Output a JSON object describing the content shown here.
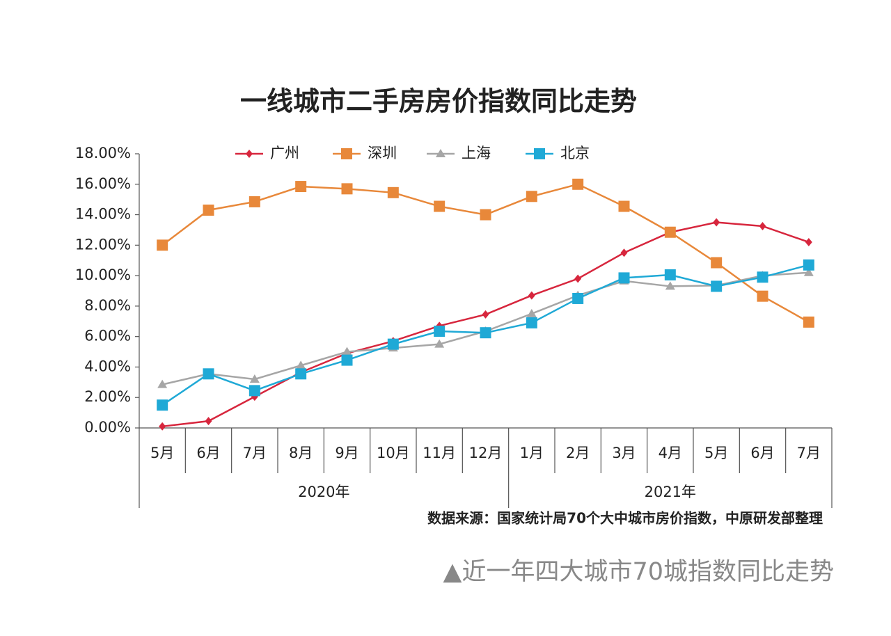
{
  "chart_data": {
    "type": "line",
    "title": "一线城市二手房房价指数同比走势",
    "source": "数据来源：国家统计局70个大中城市房价指数，中原研发部整理",
    "caption": "▲近一年四大城市70城指数同比走势",
    "category_groups": [
      {
        "name": "2020年",
        "categories": [
          "5月",
          "6月",
          "7月",
          "8月",
          "9月",
          "10月",
          "11月",
          "12月"
        ]
      },
      {
        "name": "2021年",
        "categories": [
          "1月",
          "2月",
          "3月",
          "4月",
          "5月",
          "6月",
          "7月"
        ]
      }
    ],
    "series": [
      {
        "name": "广州",
        "color": "#d7263d",
        "marker": "diamond",
        "values": [
          0.1,
          0.45,
          2.05,
          3.65,
          4.9,
          5.7,
          6.7,
          7.45,
          8.7,
          9.8,
          11.5,
          12.85,
          13.5,
          13.25,
          12.2
        ]
      },
      {
        "name": "深圳",
        "color": "#e8883a",
        "marker": "square",
        "values": [
          12.0,
          14.3,
          14.85,
          15.85,
          15.7,
          15.45,
          14.55,
          14.0,
          15.2,
          16.0,
          14.55,
          12.85,
          10.85,
          8.65,
          6.95
        ]
      },
      {
        "name": "上海",
        "color": "#a6a6a6",
        "marker": "triangle",
        "values": [
          2.85,
          3.55,
          3.2,
          4.1,
          5.0,
          5.25,
          5.5,
          6.35,
          7.5,
          8.7,
          9.65,
          9.3,
          9.35,
          10.0,
          10.2
        ]
      },
      {
        "name": "北京",
        "color": "#1fa9d6",
        "marker": "square",
        "values": [
          1.5,
          3.55,
          2.45,
          3.55,
          4.45,
          5.5,
          6.35,
          6.25,
          6.9,
          8.5,
          9.85,
          10.05,
          9.3,
          9.9,
          10.7
        ]
      }
    ],
    "ylim": [
      0,
      18
    ],
    "yticks": [
      {
        "value": 0,
        "label": "0.00%"
      },
      {
        "value": 2,
        "label": "2.00%"
      },
      {
        "value": 4,
        "label": "4.00%"
      },
      {
        "value": 6,
        "label": "6.00%"
      },
      {
        "value": 8,
        "label": "8.00%"
      },
      {
        "value": 10,
        "label": "10.00%"
      },
      {
        "value": 12,
        "label": "12.00%"
      },
      {
        "value": 14,
        "label": "14.00%"
      },
      {
        "value": 16,
        "label": "16.00%"
      },
      {
        "value": 18,
        "label": "18.00%"
      }
    ],
    "grid": false,
    "legend": "top"
  }
}
